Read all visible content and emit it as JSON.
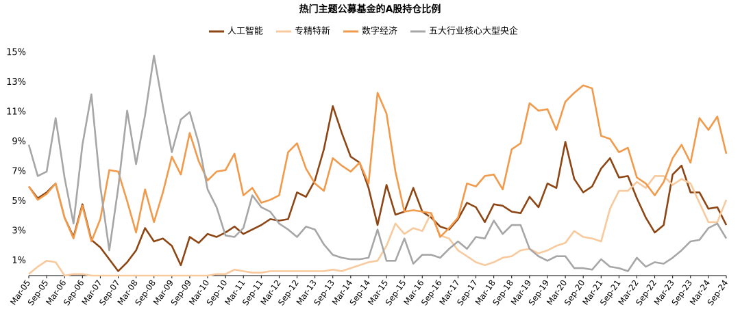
{
  "chart_data": {
    "type": "line",
    "title": "热门主题公募基金的A股持仓比例",
    "categories": [
      "Mar-05",
      null,
      "Sep-05",
      null,
      "Mar-06",
      null,
      "Sep-06",
      null,
      "Mar-07",
      null,
      "Sep-07",
      null,
      "Mar-08",
      null,
      "Sep-08",
      null,
      "Mar-09",
      null,
      "Sep-09",
      null,
      "Mar-10",
      null,
      "Sep-10",
      null,
      "Mar-11",
      null,
      "Sep-11",
      null,
      "Mar-12",
      null,
      "Sep-12",
      null,
      "Mar-13",
      null,
      "Sep-13",
      null,
      "Mar-14",
      null,
      "Sep-14",
      null,
      "Mar-15",
      null,
      "Sep-15",
      null,
      "Mar-16",
      null,
      "Sep-16",
      null,
      "Mar-17",
      null,
      "Sep-17",
      null,
      "Mar-18",
      null,
      "Sep-18",
      null,
      "Mar-19",
      null,
      "Sep-19",
      null,
      "Mar-20",
      null,
      "Sep-20",
      null,
      "Mar-21",
      null,
      "Sep-21",
      null,
      "Mar-22",
      null,
      "Sep-22",
      null,
      "Mar-23",
      null,
      "Sep-23",
      null,
      "Mar-24",
      null,
      "Sep-24"
    ],
    "series": [
      {
        "name": "人工智能",
        "color": "#8c4513",
        "values": [
          6.0,
          5.2,
          5.6,
          6.2,
          3.9,
          2.6,
          4.8,
          2.4,
          1.9,
          1.1,
          0.3,
          0.9,
          1.7,
          3.2,
          2.3,
          2.5,
          2.0,
          0.7,
          2.6,
          2.2,
          2.8,
          2.6,
          2.9,
          3.3,
          2.8,
          3.1,
          3.4,
          3.8,
          3.7,
          3.8,
          5.6,
          5.3,
          6.4,
          8.5,
          11.4,
          9.6,
          8.0,
          7.6,
          5.9,
          3.4,
          6.1,
          4.1,
          4.3,
          5.9,
          4.3,
          3.9,
          3.3,
          3.1,
          3.8,
          4.9,
          4.6,
          3.6,
          4.8,
          4.7,
          4.3,
          4.2,
          5.3,
          4.6,
          6.2,
          5.9,
          9.0,
          6.5,
          5.6,
          6.0,
          7.2,
          7.9,
          6.6,
          6.7,
          5.2,
          3.9,
          2.9,
          3.4,
          6.8,
          7.4,
          5.6,
          5.6,
          4.5,
          4.6,
          3.4
        ]
      },
      {
        "name": "专精特新",
        "color": "#f8c99c",
        "values": [
          0.1,
          0.6,
          1.0,
          0.9,
          0.0,
          0.1,
          0.1,
          0.0,
          0.0,
          0.0,
          0.0,
          0.0,
          0.0,
          0.0,
          0.0,
          0.0,
          0.0,
          0.0,
          0.0,
          0.0,
          0.0,
          0.1,
          0.1,
          0.4,
          0.3,
          0.2,
          0.2,
          0.3,
          0.3,
          0.3,
          0.3,
          0.3,
          0.3,
          0.3,
          0.4,
          0.3,
          0.5,
          0.7,
          0.9,
          1.0,
          2.0,
          3.5,
          2.8,
          3.2,
          3.0,
          4.2,
          2.7,
          2.5,
          1.7,
          1.3,
          0.9,
          0.7,
          0.9,
          1.2,
          1.3,
          1.7,
          1.8,
          1.5,
          1.7,
          2.0,
          2.2,
          3.0,
          2.6,
          2.5,
          2.3,
          4.5,
          5.7,
          5.7,
          6.3,
          5.9,
          6.7,
          6.7,
          6.1,
          6.5,
          6.2,
          4.9,
          3.6,
          3.6,
          5.1
        ]
      },
      {
        "name": "数字经济",
        "color": "#f19a4b",
        "values": [
          6.0,
          5.1,
          5.5,
          6.2,
          3.9,
          2.5,
          4.7,
          2.3,
          3.8,
          7.1,
          7.0,
          5.0,
          2.9,
          5.8,
          3.6,
          5.6,
          8.0,
          6.8,
          9.6,
          7.7,
          6.4,
          7.0,
          7.1,
          8.2,
          5.4,
          5.9,
          4.9,
          5.1,
          5.4,
          8.3,
          8.9,
          7.2,
          6.2,
          5.7,
          7.9,
          7.4,
          7.0,
          7.6,
          6.2,
          12.3,
          10.9,
          7.0,
          4.3,
          4.4,
          4.3,
          4.2,
          2.6,
          3.2,
          3.9,
          6.2,
          6.0,
          6.7,
          6.8,
          5.8,
          8.5,
          8.9,
          11.6,
          11.1,
          11.2,
          9.8,
          11.7,
          12.3,
          12.8,
          12.6,
          9.4,
          9.2,
          8.3,
          8.6,
          6.6,
          6.2,
          5.4,
          6.3,
          7.9,
          8.8,
          7.6,
          10.6,
          9.8,
          10.7,
          8.2
        ]
      },
      {
        "name": "五大行业核心大型央企",
        "color": "#a6a6a6",
        "values": [
          8.8,
          6.7,
          7.0,
          10.6,
          6.6,
          3.5,
          8.8,
          12.2,
          6.0,
          1.7,
          5.9,
          11.1,
          7.5,
          10.8,
          14.8,
          11.4,
          8.3,
          10.5,
          11.0,
          8.9,
          5.8,
          4.6,
          2.7,
          2.6,
          3.2,
          5.4,
          4.6,
          4.3,
          3.5,
          3.1,
          2.6,
          3.3,
          3.1,
          2.1,
          1.4,
          1.2,
          1.1,
          1.1,
          1.2,
          3.1,
          1.0,
          1.0,
          2.5,
          0.8,
          1.4,
          1.4,
          1.2,
          1.8,
          2.3,
          1.8,
          2.6,
          2.5,
          3.7,
          2.8,
          3.4,
          3.4,
          1.8,
          1.3,
          1.0,
          1.3,
          1.3,
          0.5,
          0.5,
          0.4,
          1.1,
          0.6,
          0.5,
          0.3,
          1.2,
          0.6,
          0.9,
          0.8,
          1.2,
          1.7,
          2.3,
          2.4,
          3.2,
          3.5,
          2.5
        ]
      }
    ],
    "ylim": [
      0,
      15
    ],
    "yticks": [
      {
        "value": 1,
        "label": "1%"
      },
      {
        "value": 3,
        "label": "3%"
      },
      {
        "value": 5,
        "label": "5%"
      },
      {
        "value": 7,
        "label": "7%"
      },
      {
        "value": 9,
        "label": "9%"
      },
      {
        "value": 11,
        "label": "11%"
      },
      {
        "value": 13,
        "label": "13%"
      },
      {
        "value": 15,
        "label": "15%"
      }
    ],
    "grid": false,
    "legend": "top"
  }
}
